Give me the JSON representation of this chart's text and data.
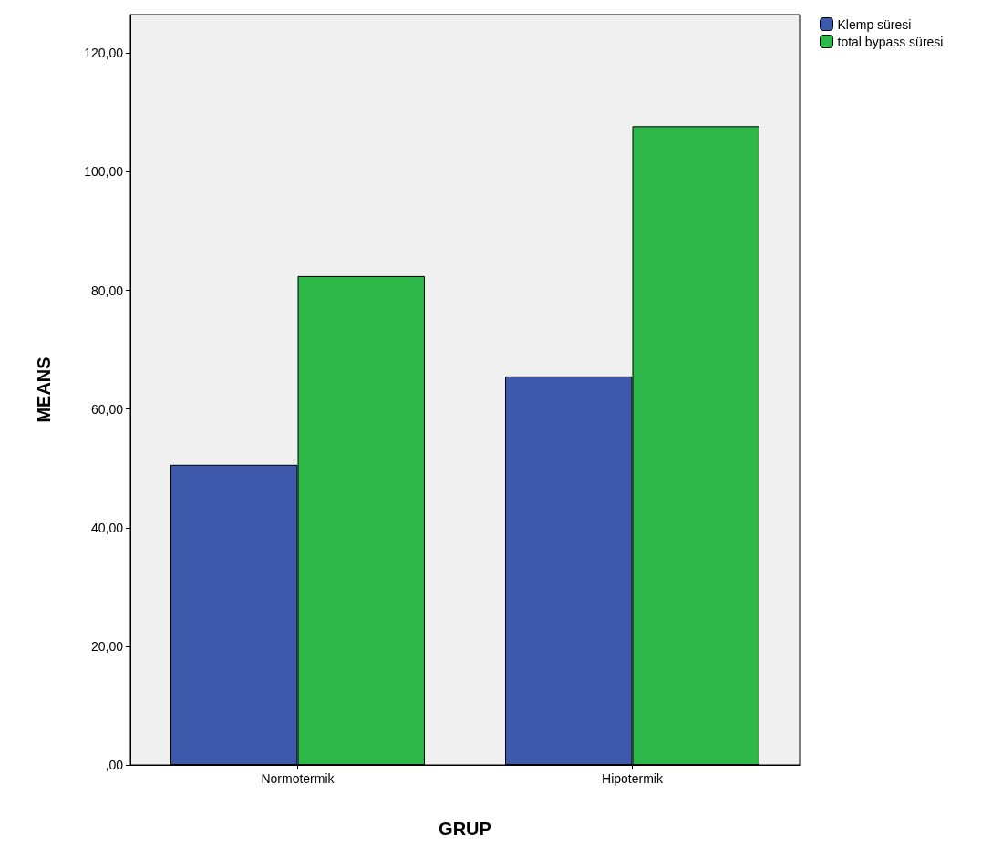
{
  "chart_data": {
    "type": "bar",
    "xlabel": "GRUP",
    "ylabel": "MEANS",
    "categories": [
      "Normotermik",
      "Hipotermik"
    ],
    "series": [
      {
        "name": "Klemp süresi",
        "color": "#3e58ac",
        "values": [
          50.6,
          65.5
        ]
      },
      {
        "name": "total bypass süresi",
        "color": "#2fb84a",
        "values": [
          82.4,
          107.7
        ]
      }
    ],
    "ylim": [
      0,
      126.5
    ],
    "yticks": [
      {
        "value": 0,
        "label": ",00"
      },
      {
        "value": 20,
        "label": "20,00"
      },
      {
        "value": 40,
        "label": "40,00"
      },
      {
        "value": 60,
        "label": "60,00"
      },
      {
        "value": 80,
        "label": "80,00"
      },
      {
        "value": 100,
        "label": "100,00"
      },
      {
        "value": 120,
        "label": "120,00"
      }
    ],
    "grid": false,
    "legend": "top right"
  }
}
